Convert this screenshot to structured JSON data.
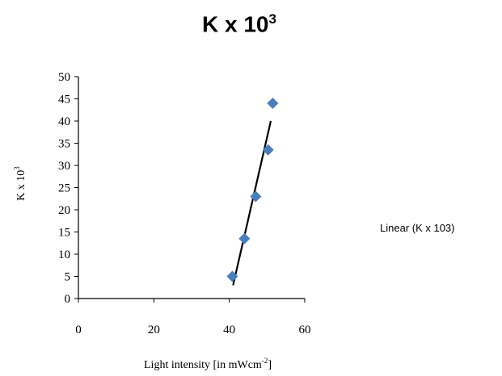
{
  "chart_data": {
    "type": "scatter",
    "title": "K x 10",
    "title_superscript": "3",
    "xlabel": "Light intensity [in mWcm",
    "xlabel_superscript": "-2",
    "xlabel_suffix": "]",
    "ylabel": "K x 10",
    "ylabel_superscript": "3",
    "xlim": [
      0,
      60
    ],
    "ylim": [
      0,
      50
    ],
    "x_ticks": [
      0,
      20,
      40,
      60
    ],
    "y_ticks": [
      0,
      5,
      10,
      15,
      20,
      25,
      30,
      35,
      40,
      45,
      50
    ],
    "grid": false,
    "legend_position": "right",
    "series": [
      {
        "x": [
          40.8,
          44.0,
          47.0,
          50.3,
          51.5
        ],
        "y": [
          5,
          13.5,
          23,
          33.5,
          44
        ],
        "marker": "diamond",
        "color": "#4a7ebb"
      }
    ],
    "trendline": {
      "name": "Linear (K x 103)",
      "type": "linear",
      "x": [
        41.0,
        51.0
      ],
      "y": [
        3.0,
        40.0
      ],
      "color": "#000000"
    }
  }
}
